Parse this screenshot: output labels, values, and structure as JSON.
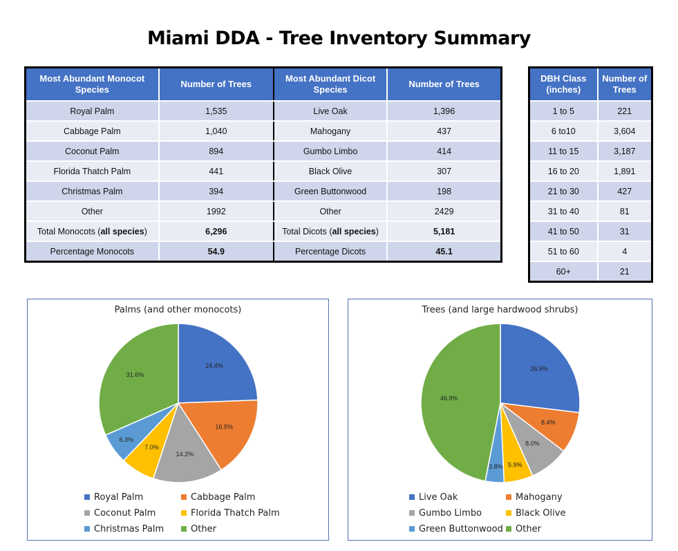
{
  "title": "Miami DDA - Tree Inventory Summary",
  "species_table": {
    "headers": [
      "Most Abundant Monocot Species",
      "Number of Trees",
      "Most Abundant Dicot Species",
      "Number of Trees"
    ],
    "rows": [
      [
        "Royal Palm",
        "1,535",
        "Live Oak",
        "1,396"
      ],
      [
        "Cabbage Palm",
        "1,040",
        "Mahogany",
        "437"
      ],
      [
        "Coconut Palm",
        "894",
        "Gumbo Limbo",
        "414"
      ],
      [
        "Florida Thatch Palm",
        "441",
        "Black Olive",
        "307"
      ],
      [
        "Christmas Palm",
        "394",
        "Green Buttonwood",
        "198"
      ],
      [
        "Other",
        "1992",
        "Other",
        "2429"
      ]
    ],
    "total_row": {
      "mono_label": "Total Monocots (",
      "mono_bold": "all species",
      "mono_end": ")",
      "mono_value": "6,296",
      "dicot_label": "Total Dicots (",
      "dicot_bold": "all species",
      "dicot_end": ")",
      "dicot_value": "5,181"
    },
    "percent_row": [
      "Percentage Monocots",
      "54.9",
      "Percentage Dicots",
      "45.1"
    ]
  },
  "dbh_table": {
    "headers": [
      "DBH Class (inches)",
      "Number of Trees"
    ],
    "rows": [
      [
        "1 to 5",
        "221"
      ],
      [
        "6 to10",
        "3,604"
      ],
      [
        "11 to 15",
        "3,187"
      ],
      [
        "16 to 20",
        "1,891"
      ],
      [
        "21 to 30",
        "427"
      ],
      [
        "31 to 40",
        "81"
      ],
      [
        "41 to 50",
        "31"
      ],
      [
        "51 to 60",
        "4"
      ],
      [
        "60+",
        "21"
      ]
    ]
  },
  "chart_data": [
    {
      "type": "pie",
      "title": "Palms (and other monocots)",
      "categories": [
        "Royal Palm",
        "Cabbage Palm",
        "Coconut Palm",
        "Florida Thatch Palm",
        "Christmas Palm",
        "Other"
      ],
      "values": [
        24.4,
        16.5,
        14.2,
        7.0,
        6.3,
        31.6
      ],
      "labels": [
        "24.4%",
        "16.5%",
        "14.2%",
        "7.0%",
        "6.3%",
        "31.6%"
      ],
      "colors": [
        "#4472C4",
        "#ED7D31",
        "#A5A5A5",
        "#FFC000",
        "#5B9BD5",
        "#70AD47"
      ],
      "legend": "bottom"
    },
    {
      "type": "pie",
      "title": "Trees (and large hardwood shrubs)",
      "categories": [
        "Live Oak",
        "Mahogany",
        "Gumbo Limbo",
        "Black Olive",
        "Green Buttonwood",
        "Other"
      ],
      "values": [
        26.9,
        8.4,
        8.0,
        5.9,
        3.8,
        46.9
      ],
      "labels": [
        "26.9%",
        "8.4%",
        "8.0%",
        "5.9%",
        "3.8%",
        "46.9%"
      ],
      "colors": [
        "#4472C4",
        "#ED7D31",
        "#A5A5A5",
        "#FFC000",
        "#5B9BD5",
        "#70AD47"
      ],
      "legend": "bottom"
    }
  ]
}
